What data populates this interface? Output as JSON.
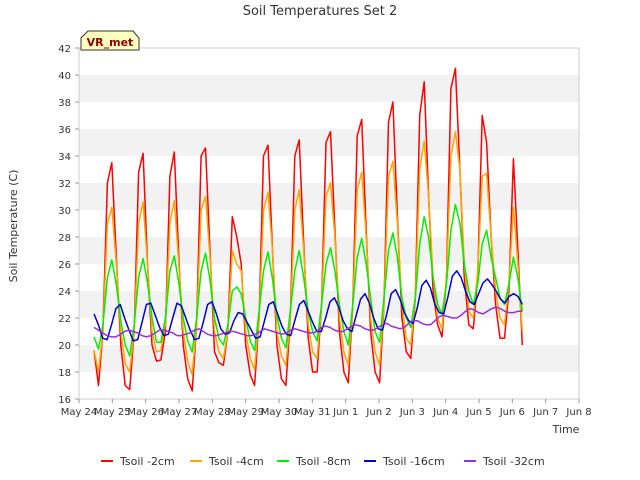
{
  "chart_data": {
    "type": "line",
    "title": "Soil Temperatures Set 2",
    "xlabel": "Time",
    "ylabel": "Soil Temperature (C)",
    "site_label": "VR_met",
    "ylim": [
      16,
      42
    ],
    "yticks": [
      16,
      18,
      20,
      22,
      24,
      26,
      28,
      30,
      32,
      34,
      36,
      38,
      40,
      42
    ],
    "xlim": [
      "May 24",
      "Jun 8"
    ],
    "xtick_labels": [
      "May 24",
      "May 25",
      "May 26",
      "May 27",
      "May 28",
      "May 29",
      "May 30",
      "May 31",
      "Jun 1",
      "Jun 2",
      "Jun 3",
      "Jun 4",
      "Jun 5",
      "Jun 6",
      "Jun 7",
      "Jun 8"
    ],
    "grid": "horizontal bands",
    "legend_position": "bottom",
    "x_start": "May 24",
    "x_end": "Jun 7",
    "x_step": "3 h",
    "series": [
      {
        "name": "Tsoil -2cm",
        "color": "#ff0000",
        "values": [
          19.6,
          17,
          21,
          32,
          33.5,
          26.5,
          20,
          17,
          16.7,
          21,
          32.8,
          34.2,
          26,
          20,
          18.8,
          18.9,
          21,
          32.5,
          34.3,
          26.5,
          20,
          17.5,
          16.6,
          21.5,
          34,
          34.6,
          27,
          19.5,
          18.7,
          18.5,
          21,
          29.5,
          28,
          26,
          20,
          17.8,
          17,
          22,
          34,
          34.8,
          27,
          20,
          17.5,
          17,
          22,
          34,
          35.2,
          27.5,
          20.5,
          18,
          18,
          23,
          35,
          35.8,
          28.5,
          21,
          18,
          17.2,
          23,
          35.5,
          36.7,
          28.5,
          21,
          18,
          17.2,
          23,
          36.5,
          38,
          29.5,
          22,
          19.5,
          19,
          23.5,
          37,
          39.5,
          31,
          24,
          21.5,
          20.6,
          25,
          39,
          40.5,
          33,
          25,
          21.5,
          21.2,
          25,
          37,
          35,
          28,
          23,
          20.5,
          20.5,
          24,
          33.8,
          27,
          20
        ]
      },
      {
        "name": "Tsoil -4cm",
        "color": "#ffa500",
        "values": [
          19.6,
          18,
          21,
          29,
          30.2,
          26,
          21,
          18.6,
          18,
          21,
          29,
          30.6,
          26,
          21,
          19.5,
          19.6,
          21.5,
          29,
          30.7,
          26,
          21,
          18.8,
          17.8,
          21.5,
          30,
          31,
          26.5,
          21,
          19.5,
          19,
          21,
          27,
          26,
          25.5,
          21,
          19,
          18.2,
          22,
          30,
          31.3,
          27,
          21,
          19.2,
          18.5,
          22,
          30,
          31.5,
          27,
          21.5,
          19.5,
          19,
          23,
          31,
          32,
          28,
          22,
          19.5,
          18.5,
          23,
          31.5,
          32.8,
          28,
          22,
          19.5,
          18.5,
          23,
          32.5,
          33.6,
          29,
          23,
          20.5,
          20,
          23.5,
          33,
          35.1,
          31,
          25,
          22,
          21.2,
          25,
          34,
          35.8,
          33,
          26,
          22.5,
          22,
          25.5,
          32.5,
          32.7,
          28,
          24,
          22,
          21.5,
          24.5,
          30.2,
          26,
          21
        ]
      },
      {
        "name": "Tsoil -8cm",
        "color": "#00ee00",
        "values": [
          20.6,
          19.7,
          21.5,
          25,
          26.3,
          24.5,
          21.8,
          20,
          19.2,
          21.5,
          25,
          26.4,
          24.6,
          22,
          20.2,
          20.2,
          22,
          25.5,
          26.6,
          24.6,
          22,
          20.3,
          19.5,
          22,
          25.5,
          26.8,
          24.8,
          22,
          20.5,
          20,
          21.5,
          24,
          24.3,
          23.8,
          22,
          20.3,
          19.6,
          22.5,
          25.5,
          26.9,
          24.9,
          22.2,
          20.5,
          19.8,
          22.5,
          25.5,
          27,
          25,
          22.5,
          21,
          20.3,
          23,
          26,
          27.2,
          25.5,
          23,
          21,
          20,
          23,
          26.5,
          27.9,
          26,
          23.5,
          21,
          20.2,
          23.5,
          27,
          28.3,
          26.5,
          23.5,
          22,
          21.3,
          23.5,
          27.5,
          29.5,
          28,
          25,
          23,
          22.3,
          24.5,
          28.5,
          30.4,
          29,
          26,
          24,
          23,
          24.5,
          27.5,
          28.5,
          26.5,
          25,
          23.5,
          23,
          24.5,
          26.5,
          25,
          22.5
        ]
      },
      {
        "name": "Tsoil -16cm",
        "color": "#0000cc",
        "values": [
          22.3,
          21.5,
          20.5,
          20.4,
          21.5,
          22.7,
          23,
          22,
          21.1,
          20.3,
          20.4,
          21.7,
          23,
          23.1,
          22.2,
          21.3,
          20.7,
          20.8,
          22,
          23.1,
          22.9,
          22,
          21.1,
          20.4,
          20.5,
          21.7,
          23,
          23.2,
          22.3,
          21.2,
          20.8,
          20.9,
          21.8,
          22.4,
          22.3,
          21.7,
          21.1,
          20.5,
          20.6,
          21.8,
          23,
          23.2,
          22.3,
          21.4,
          20.8,
          20.7,
          21.9,
          23,
          23.3,
          22.5,
          21.7,
          21,
          21,
          22,
          23.2,
          23.5,
          22.8,
          21.8,
          21.2,
          21,
          22.2,
          23.4,
          23.8,
          23.1,
          22,
          21.2,
          21.1,
          22.3,
          23.8,
          24.1,
          23.4,
          22.4,
          21.8,
          21.6,
          22.8,
          24.4,
          24.8,
          24.2,
          23,
          22.4,
          22.3,
          23.6,
          25.1,
          25.5,
          25,
          24,
          23.2,
          23,
          23.8,
          24.6,
          24.9,
          24.5,
          24,
          23.4,
          23.1,
          23.6,
          23.8,
          23.6,
          23
        ]
      },
      {
        "name": "Tsoil -32cm",
        "color": "#9b30d9",
        "values": [
          21.3,
          21.1,
          20.9,
          20.7,
          20.6,
          20.6,
          20.8,
          21,
          21.1,
          21,
          20.9,
          20.7,
          20.6,
          20.7,
          20.9,
          21.1,
          21.1,
          21,
          20.9,
          20.7,
          20.7,
          20.8,
          20.9,
          21.1,
          21.2,
          21,
          20.8,
          20.7,
          20.7,
          20.8,
          20.9,
          21,
          21,
          20.9,
          20.8,
          20.7,
          20.7,
          20.8,
          21,
          21.2,
          21.1,
          21,
          20.9,
          20.8,
          20.9,
          21.1,
          21.2,
          21.1,
          21,
          20.9,
          20.9,
          21,
          21.3,
          21.4,
          21.3,
          21.1,
          21,
          21,
          21.2,
          21.4,
          21.5,
          21.4,
          21.2,
          21.1,
          21.1,
          21.3,
          21.5,
          21.6,
          21.4,
          21.3,
          21.2,
          21.3,
          21.6,
          21.8,
          21.8,
          21.6,
          21.5,
          21.5,
          21.8,
          22.1,
          22.2,
          22.1,
          22,
          22,
          22.2,
          22.5,
          22.7,
          22.6,
          22.4,
          22.3,
          22.5,
          22.7,
          22.8,
          22.7,
          22.5,
          22.4,
          22.4,
          22.5,
          22.5
        ]
      }
    ]
  }
}
